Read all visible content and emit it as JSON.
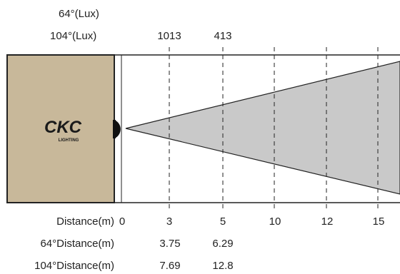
{
  "header": {
    "beam64_lux_label": "64°(Lux)",
    "beam104_lux_label": "104°(Lux)",
    "lux_values_104": [
      "1013",
      "413"
    ]
  },
  "fixture": {
    "brand": "CKC",
    "sub_brand": "LIGHTING",
    "fill_color": "#c8b89a",
    "beam_color": "#c9c9c9"
  },
  "rows": {
    "distance_label": "Distance(m)",
    "distance_ticks": [
      "0",
      "3",
      "5",
      "10",
      "12",
      "15"
    ],
    "beam64_label": "64°Distance(m)",
    "beam64_values": [
      "3.75",
      "6.29"
    ],
    "beam104_label": "104°Distance(m)",
    "beam104_values": [
      "7.69",
      "12.8"
    ]
  }
}
